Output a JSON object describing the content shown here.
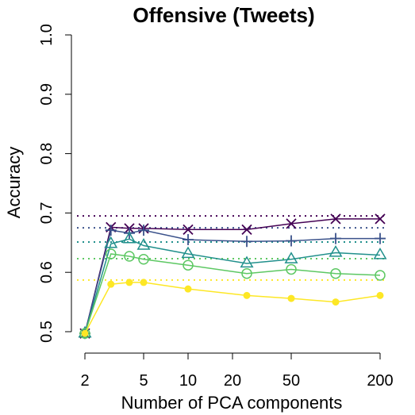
{
  "chart_data": {
    "type": "line",
    "title": "Offensive (Tweets)",
    "xlabel": "Number of PCA components",
    "ylabel": "Accuracy",
    "x_scale": "log",
    "x_ticks": [
      2,
      5,
      10,
      20,
      50,
      200
    ],
    "x_tick_labels": [
      "2",
      "5",
      "10",
      "20",
      "50",
      "200"
    ],
    "y_ticks": [
      0.5,
      0.6,
      0.7,
      0.8,
      0.9,
      1.0
    ],
    "y_tick_labels": [
      "0.5",
      "0.6",
      "0.7",
      "0.8",
      "0.9",
      "1.0"
    ],
    "ylim": [
      0.5,
      1.0
    ],
    "grid": false,
    "x": [
      2,
      3,
      4,
      5,
      10,
      25,
      50,
      100,
      200
    ],
    "series": [
      {
        "marker": "x",
        "color": "#440154",
        "values": [
          0.497,
          0.676,
          0.674,
          0.674,
          0.672,
          0.672,
          0.682,
          0.69,
          0.69
        ],
        "baseline": 0.695
      },
      {
        "marker": "plus",
        "color": "#3b528b",
        "values": [
          0.497,
          0.671,
          0.666,
          0.671,
          0.655,
          0.652,
          0.653,
          0.657,
          0.657
        ],
        "baseline": 0.675
      },
      {
        "marker": "triangle",
        "color": "#21908c",
        "values": [
          0.497,
          0.648,
          0.656,
          0.645,
          0.631,
          0.615,
          0.622,
          0.633,
          0.629
        ],
        "baseline": 0.651
      },
      {
        "marker": "circle",
        "color": "#5dc863",
        "values": [
          0.497,
          0.631,
          0.627,
          0.622,
          0.612,
          0.598,
          0.605,
          0.598,
          0.595
        ],
        "baseline": 0.623
      },
      {
        "marker": "dot",
        "color": "#fde725",
        "values": [
          0.497,
          0.58,
          0.583,
          0.583,
          0.572,
          0.561,
          0.556,
          0.55,
          0.561
        ],
        "baseline": 0.587
      }
    ]
  }
}
